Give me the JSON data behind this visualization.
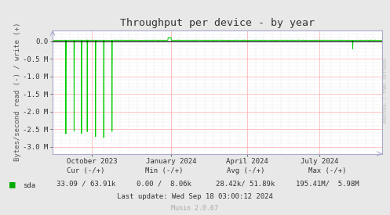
{
  "title": "Throughput per device - by year",
  "ylabel": "Bytes/second read (-) / write (+)",
  "bg_color": "#e8e8e8",
  "plot_bg_color": "#ffffff",
  "grid_color_major": "#ffaaaa",
  "grid_color_minor": "#cccccc",
  "line_color": "#00cc00",
  "zero_line_color": "#000000",
  "axis_color": "#aaaacc",
  "title_color": "#333333",
  "label_color": "#555555",
  "tick_color": "#333333",
  "legend_label": "sda",
  "legend_color": "#00aa00",
  "cur_text": "Cur (-/+)",
  "min_text": "Min (-/+)",
  "avg_text": "Avg (-/+)",
  "max_text": "Max (-/+)",
  "cur_val": "33.09 / 63.91k",
  "min_val": "0.00 /  8.06k",
  "avg_val": "28.42k/ 51.89k",
  "max_val": "195.41M/  5.98M",
  "last_update": "Last update: Wed Sep 18 03:00:12 2024",
  "munin_version": "Munin 2.0.67",
  "watermark": "RRDTOOL / TOBI OETIKER",
  "ylim_min": -3.2,
  "ylim_max": 0.32,
  "ytick_values": [
    0.0,
    -0.5,
    -1.0,
    -1.5,
    -2.0,
    -2.5,
    -3.0
  ],
  "ytick_labels": [
    "0.0",
    "-0.5 M",
    "-1.0 M",
    "-1.5 M",
    "-2.0 M",
    "-2.5 M",
    "-3.0 M"
  ],
  "xtick_labels": [
    "October 2023",
    "January 2024",
    "April 2024",
    "July 2024"
  ],
  "xtick_positions": [
    0.12,
    0.36,
    0.59,
    0.81
  ]
}
